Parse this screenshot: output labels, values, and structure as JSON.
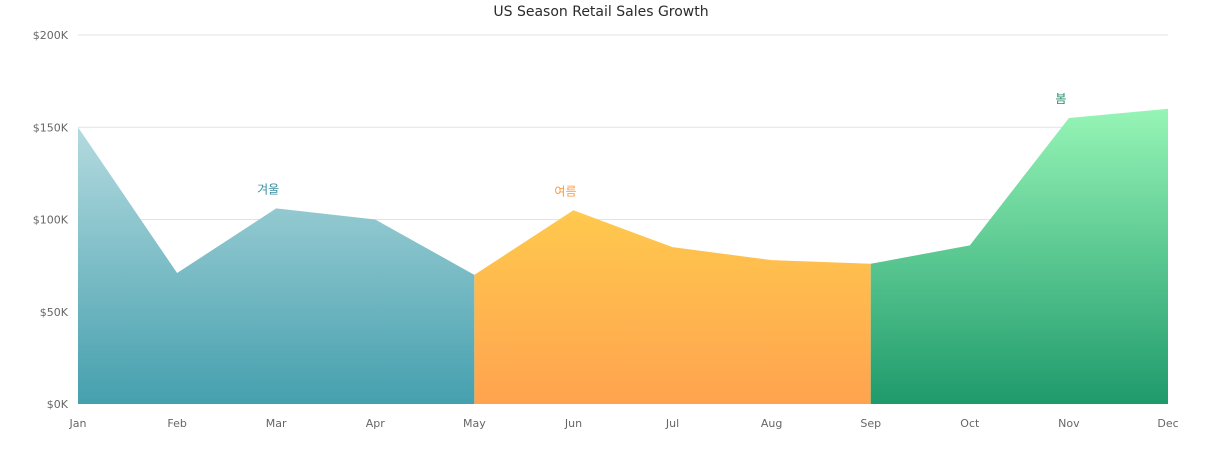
{
  "chart_data": {
    "type": "area",
    "title": "US Season Retail Sales Growth",
    "xlabel": "",
    "ylabel": "",
    "categories": [
      "Jan",
      "Feb",
      "Mar",
      "Apr",
      "May",
      "Jun",
      "Jul",
      "Aug",
      "Sep",
      "Oct",
      "Nov",
      "Dec"
    ],
    "values": [
      150000,
      71000,
      106000,
      100000,
      70000,
      105000,
      85000,
      78000,
      76000,
      86000,
      155000,
      160000
    ],
    "ylim": [
      0,
      200000
    ],
    "yticks": [
      0,
      50000,
      100000,
      150000,
      200000
    ],
    "ytick_labels": [
      "$0K",
      "$50K",
      "$100K",
      "$150K",
      "$200K"
    ],
    "grid": true,
    "legend": "none",
    "segments": [
      {
        "label": "겨울",
        "start": "Jan",
        "end": "May",
        "label_at": "Mar",
        "color_top": "#b4dadf",
        "color_bottom": "#45a0ae",
        "label_color": "#3a8ea0"
      },
      {
        "label": "여름",
        "start": "May",
        "end": "Sep",
        "label_at": "Jun",
        "color_top": "#ffc94e",
        "color_bottom": "#ffa34f",
        "label_color": "#ff9a3c"
      },
      {
        "label": "봄",
        "start": "Sep",
        "end": "Dec",
        "label_at": "Nov",
        "color_top": "#96f5b6",
        "color_bottom": "#1f9a6c",
        "label_color": "#1f8f64"
      }
    ]
  }
}
